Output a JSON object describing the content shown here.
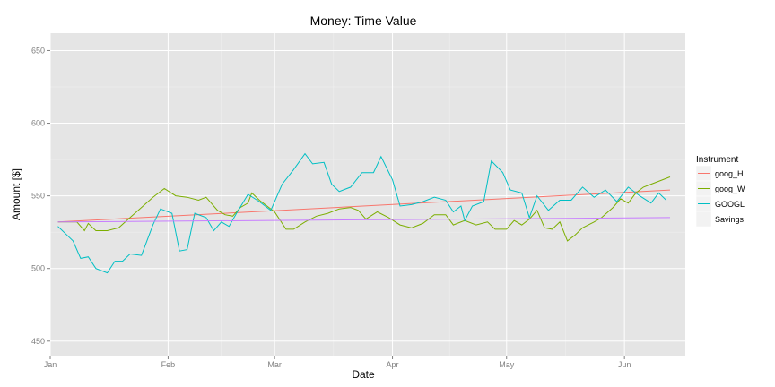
{
  "chart_data": {
    "type": "line",
    "title": "Money:  Time Value",
    "xlabel": "Date",
    "ylabel": "Amount [$]",
    "x_axis": {
      "type": "date",
      "range": [
        "2014-01-01",
        "2014-06-17"
      ],
      "ticks": [
        {
          "date": "2014-01-01",
          "label": "Jan"
        },
        {
          "date": "2014-02-01",
          "label": "Feb"
        },
        {
          "date": "2014-03-01",
          "label": "Mar"
        },
        {
          "date": "2014-04-01",
          "label": "Apr"
        },
        {
          "date": "2014-05-01",
          "label": "May"
        },
        {
          "date": "2014-06-01",
          "label": "Jun"
        }
      ]
    },
    "y_axis": {
      "range": [
        440,
        662
      ],
      "ticks": [
        450,
        500,
        550,
        600,
        650
      ]
    },
    "grid": true,
    "legend": {
      "title": "Instrument",
      "position": "right"
    },
    "series": [
      {
        "name": "goog_H",
        "color": "#F8766D",
        "points": [
          [
            "2014-01-03",
            532
          ],
          [
            "2014-06-13",
            554
          ]
        ]
      },
      {
        "name": "goog_W",
        "color": "#7CAE00",
        "points": [
          [
            "2014-01-03",
            532
          ],
          [
            "2014-01-08",
            532
          ],
          [
            "2014-01-10",
            526
          ],
          [
            "2014-01-11",
            531
          ],
          [
            "2014-01-13",
            526
          ],
          [
            "2014-01-16",
            526
          ],
          [
            "2014-01-19",
            528
          ],
          [
            "2014-01-22",
            535
          ],
          [
            "2014-01-25",
            542
          ],
          [
            "2014-01-28",
            549
          ],
          [
            "2014-01-31",
            555
          ],
          [
            "2014-02-03",
            550
          ],
          [
            "2014-02-06",
            549
          ],
          [
            "2014-02-09",
            547
          ],
          [
            "2014-02-11",
            549
          ],
          [
            "2014-02-14",
            540
          ],
          [
            "2014-02-16",
            537
          ],
          [
            "2014-02-18",
            536
          ],
          [
            "2014-02-20",
            542
          ],
          [
            "2014-02-22",
            545
          ],
          [
            "2014-02-23",
            552
          ],
          [
            "2014-02-25",
            547
          ],
          [
            "2014-02-27",
            543
          ],
          [
            "2014-03-01",
            539
          ],
          [
            "2014-03-04",
            527
          ],
          [
            "2014-03-06",
            527
          ],
          [
            "2014-03-09",
            532
          ],
          [
            "2014-03-12",
            536
          ],
          [
            "2014-03-15",
            538
          ],
          [
            "2014-03-18",
            541
          ],
          [
            "2014-03-21",
            542
          ],
          [
            "2014-03-23",
            540
          ],
          [
            "2014-03-25",
            534
          ],
          [
            "2014-03-28",
            539
          ],
          [
            "2014-03-31",
            535
          ],
          [
            "2014-04-03",
            530
          ],
          [
            "2014-04-06",
            528
          ],
          [
            "2014-04-09",
            531
          ],
          [
            "2014-04-12",
            537
          ],
          [
            "2014-04-15",
            537
          ],
          [
            "2014-04-17",
            530
          ],
          [
            "2014-04-20",
            533
          ],
          [
            "2014-04-23",
            530
          ],
          [
            "2014-04-26",
            532
          ],
          [
            "2014-04-28",
            527
          ],
          [
            "2014-05-01",
            527
          ],
          [
            "2014-05-03",
            533
          ],
          [
            "2014-05-05",
            530
          ],
          [
            "2014-05-07",
            534
          ],
          [
            "2014-05-09",
            540
          ],
          [
            "2014-05-11",
            528
          ],
          [
            "2014-05-13",
            527
          ],
          [
            "2014-05-15",
            532
          ],
          [
            "2014-05-17",
            519
          ],
          [
            "2014-05-19",
            523
          ],
          [
            "2014-05-21",
            528
          ],
          [
            "2014-05-24",
            532
          ],
          [
            "2014-05-26",
            535
          ],
          [
            "2014-05-29",
            542
          ],
          [
            "2014-05-31",
            548
          ],
          [
            "2014-06-02",
            545
          ],
          [
            "2014-06-04",
            552
          ],
          [
            "2014-06-06",
            556
          ],
          [
            "2014-06-08",
            558
          ],
          [
            "2014-06-10",
            560
          ],
          [
            "2014-06-13",
            563
          ]
        ]
      },
      {
        "name": "GOOGL",
        "color": "#00BFC4",
        "points": [
          [
            "2014-01-03",
            529
          ],
          [
            "2014-01-05",
            524
          ],
          [
            "2014-01-07",
            519
          ],
          [
            "2014-01-09",
            507
          ],
          [
            "2014-01-11",
            508
          ],
          [
            "2014-01-13",
            500
          ],
          [
            "2014-01-16",
            497
          ],
          [
            "2014-01-18",
            505
          ],
          [
            "2014-01-20",
            505
          ],
          [
            "2014-01-22",
            510
          ],
          [
            "2014-01-25",
            509
          ],
          [
            "2014-01-28",
            530
          ],
          [
            "2014-01-30",
            541
          ],
          [
            "2014-02-02",
            538
          ],
          [
            "2014-02-04",
            512
          ],
          [
            "2014-02-06",
            513
          ],
          [
            "2014-02-08",
            538
          ],
          [
            "2014-02-11",
            535
          ],
          [
            "2014-02-13",
            526
          ],
          [
            "2014-02-15",
            532
          ],
          [
            "2014-02-17",
            529
          ],
          [
            "2014-02-19",
            538
          ],
          [
            "2014-02-22",
            551
          ],
          [
            "2014-02-25",
            546
          ],
          [
            "2014-02-28",
            540
          ],
          [
            "2014-03-03",
            558
          ],
          [
            "2014-03-06",
            568
          ],
          [
            "2014-03-09",
            579
          ],
          [
            "2014-03-11",
            572
          ],
          [
            "2014-03-14",
            573
          ],
          [
            "2014-03-16",
            558
          ],
          [
            "2014-03-18",
            553
          ],
          [
            "2014-03-21",
            556
          ],
          [
            "2014-03-24",
            566
          ],
          [
            "2014-03-27",
            566
          ],
          [
            "2014-03-29",
            577
          ],
          [
            "2014-04-01",
            561
          ],
          [
            "2014-04-03",
            543
          ],
          [
            "2014-04-06",
            544
          ],
          [
            "2014-04-09",
            546
          ],
          [
            "2014-04-12",
            549
          ],
          [
            "2014-04-15",
            547
          ],
          [
            "2014-04-17",
            539
          ],
          [
            "2014-04-19",
            543
          ],
          [
            "2014-04-20",
            533
          ],
          [
            "2014-04-22",
            543
          ],
          [
            "2014-04-25",
            546
          ],
          [
            "2014-04-27",
            574
          ],
          [
            "2014-04-30",
            566
          ],
          [
            "2014-05-02",
            554
          ],
          [
            "2014-05-05",
            552
          ],
          [
            "2014-05-07",
            535
          ],
          [
            "2014-05-09",
            550
          ],
          [
            "2014-05-12",
            540
          ],
          [
            "2014-05-15",
            547
          ],
          [
            "2014-05-18",
            547
          ],
          [
            "2014-05-21",
            556
          ],
          [
            "2014-05-24",
            549
          ],
          [
            "2014-05-27",
            554
          ],
          [
            "2014-05-30",
            546
          ],
          [
            "2014-06-02",
            556
          ],
          [
            "2014-06-05",
            550
          ],
          [
            "2014-06-08",
            545
          ],
          [
            "2014-06-10",
            552
          ],
          [
            "2014-06-12",
            547
          ]
        ]
      },
      {
        "name": "Savings",
        "color": "#C77CFF",
        "points": [
          [
            "2014-01-03",
            532
          ],
          [
            "2014-06-13",
            535
          ]
        ]
      }
    ]
  }
}
